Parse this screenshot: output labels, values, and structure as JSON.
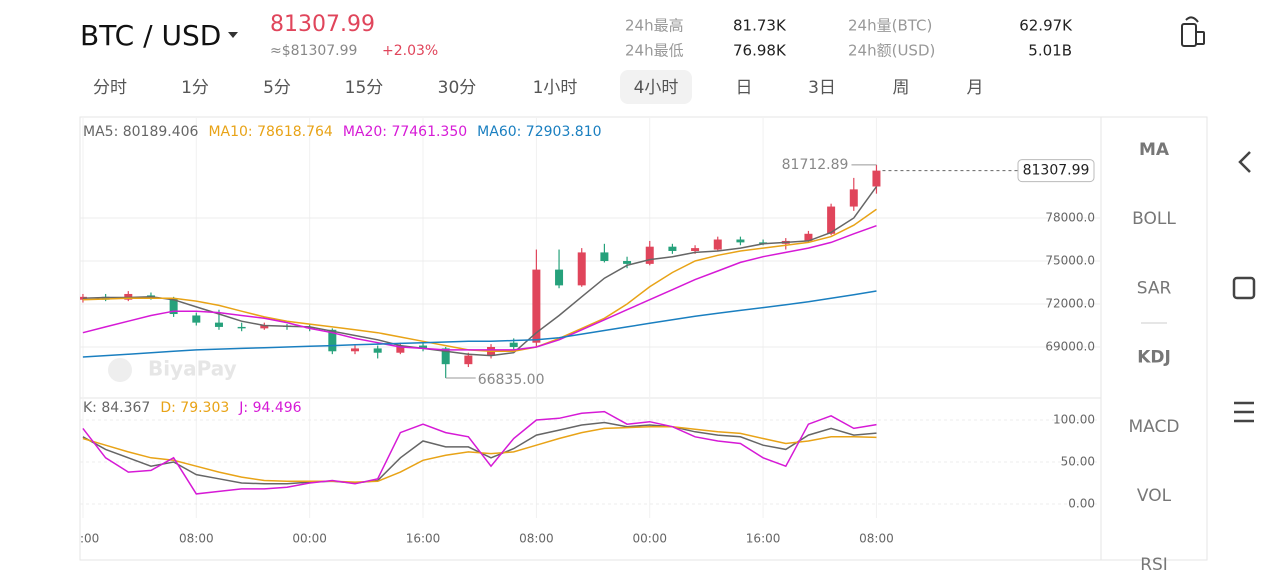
{
  "header": {
    "pair": "BTC / USD",
    "price": "81307.99",
    "approx": "≈$81307.99",
    "change": "+2.03%",
    "stats": [
      {
        "label": "24h最高",
        "value": "81.73K"
      },
      {
        "label": "24h最低",
        "value": "76.98K"
      },
      {
        "label": "24h量(BTC)",
        "value": "62.97K"
      },
      {
        "label": "24h额(USD)",
        "value": "5.01B"
      }
    ]
  },
  "tabs": [
    "分时",
    "1分",
    "5分",
    "15分",
    "30分",
    "1小时",
    "4小时",
    "日",
    "3日",
    "周",
    "月"
  ],
  "indicators": [
    "MA",
    "BOLL",
    "SAR",
    "KDJ",
    "MACD",
    "VOL",
    "RSI"
  ],
  "watermark": "BiyaPay",
  "chart_data": [
    {
      "type": "candlestick",
      "up_color": "#e0455b",
      "down_color": "#26a17b",
      "xlim": [
        -0.13,
        44.86
      ],
      "ylim": [
        65440,
        84980
      ],
      "yticks": [
        {
          "value": 69000,
          "label": "69000.0"
        },
        {
          "value": 72000,
          "label": "72000.0"
        },
        {
          "value": 75000,
          "label": "75000.0"
        },
        {
          "value": 78000,
          "label": "78000.0"
        }
      ],
      "candles": [
        {
          "open": 72300,
          "high": 72700,
          "low": 72100,
          "close": 72500
        },
        {
          "open": 72500,
          "high": 72700,
          "low": 72200,
          "close": 72300
        },
        {
          "open": 72300,
          "high": 72900,
          "low": 72200,
          "close": 72700
        },
        {
          "open": 72600,
          "high": 72800,
          "low": 72300,
          "close": 72400
        },
        {
          "open": 72400,
          "high": 72500,
          "low": 71100,
          "close": 71300
        },
        {
          "open": 71200,
          "high": 71400,
          "low": 70500,
          "close": 70700
        },
        {
          "open": 70700,
          "high": 71600,
          "low": 70200,
          "close": 70400
        },
        {
          "open": 70400,
          "high": 70700,
          "low": 70100,
          "close": 70300
        },
        {
          "open": 70300,
          "high": 70700,
          "low": 70200,
          "close": 70500
        },
        {
          "open": 70500,
          "high": 70600,
          "low": 70200,
          "close": 70400
        },
        {
          "open": 70400,
          "high": 70600,
          "low": 70100,
          "close": 70300
        },
        {
          "open": 70200,
          "high": 70300,
          "low": 68500,
          "close": 68700
        },
        {
          "open": 68700,
          "high": 69100,
          "low": 68500,
          "close": 68900
        },
        {
          "open": 68900,
          "high": 69100,
          "low": 68200,
          "close": 68600
        },
        {
          "open": 68600,
          "high": 69300,
          "low": 68500,
          "close": 69100
        },
        {
          "open": 69100,
          "high": 69300,
          "low": 68700,
          "close": 68900
        },
        {
          "open": 68900,
          "high": 69000,
          "low": 66835,
          "close": 67800
        },
        {
          "open": 67800,
          "high": 68600,
          "low": 67600,
          "close": 68400
        },
        {
          "open": 68400,
          "high": 69200,
          "low": 68200,
          "close": 69000
        },
        {
          "open": 69300,
          "high": 69600,
          "low": 68800,
          "close": 69000
        },
        {
          "open": 69300,
          "high": 75800,
          "low": 69000,
          "close": 74400
        },
        {
          "open": 74400,
          "high": 75800,
          "low": 73100,
          "close": 73300
        },
        {
          "open": 73300,
          "high": 75900,
          "low": 73200,
          "close": 75600
        },
        {
          "open": 75600,
          "high": 76200,
          "low": 74900,
          "close": 75000
        },
        {
          "open": 75000,
          "high": 75300,
          "low": 74500,
          "close": 74800
        },
        {
          "open": 74800,
          "high": 76400,
          "low": 74700,
          "close": 76000
        },
        {
          "open": 76000,
          "high": 76200,
          "low": 75500,
          "close": 75700
        },
        {
          "open": 75700,
          "high": 76100,
          "low": 75500,
          "close": 75900
        },
        {
          "open": 75800,
          "high": 76700,
          "low": 75700,
          "close": 76500
        },
        {
          "open": 76500,
          "high": 76700,
          "low": 76100,
          "close": 76300
        },
        {
          "open": 76300,
          "high": 76500,
          "low": 76100,
          "close": 76200
        },
        {
          "open": 76200,
          "high": 76600,
          "low": 75800,
          "close": 76400
        },
        {
          "open": 76400,
          "high": 77100,
          "low": 76300,
          "close": 76900
        },
        {
          "open": 76900,
          "high": 79000,
          "low": 76800,
          "close": 78800
        },
        {
          "open": 78800,
          "high": 80800,
          "low": 78500,
          "close": 80000
        },
        {
          "open": 80200,
          "high": 81712.89,
          "low": 79700,
          "close": 81307.99
        }
      ],
      "series": [
        {
          "name": "MA5: 80189.406",
          "color": "#666666",
          "values": [
            72400,
            72450,
            72450,
            72500,
            72300,
            71800,
            71300,
            70800,
            70500,
            70450,
            70400,
            70100,
            69800,
            69500,
            69100,
            68900,
            68700,
            68500,
            68400,
            68600,
            70000,
            71200,
            72500,
            73800,
            74700,
            75100,
            75300,
            75600,
            75700,
            75900,
            76200,
            76300,
            76400,
            77000,
            78000,
            80189.406
          ]
        },
        {
          "name": "MA10: 78618.764",
          "color": "#e8a317",
          "values": [
            72300,
            72350,
            72400,
            72400,
            72400,
            72200,
            71900,
            71500,
            71100,
            70800,
            70600,
            70400,
            70200,
            70000,
            69700,
            69400,
            69100,
            68800,
            68700,
            68700,
            69000,
            69600,
            70300,
            71000,
            72000,
            73200,
            74200,
            75000,
            75400,
            75700,
            75900,
            76100,
            76300,
            76700,
            77500,
            78618.764
          ]
        },
        {
          "name": "MA20: 77461.350",
          "color": "#d61ad6",
          "values": [
            70000,
            70400,
            70800,
            71200,
            71500,
            71500,
            71400,
            71200,
            71000,
            70700,
            70300,
            70000,
            69600,
            69300,
            69000,
            68900,
            68800,
            68800,
            68800,
            68800,
            69000,
            69500,
            70200,
            70900,
            71600,
            72300,
            73000,
            73700,
            74300,
            74900,
            75300,
            75600,
            75900,
            76300,
            76900,
            77461.35
          ]
        },
        {
          "name": "MA60: 72903.810",
          "color": "#1a7fc0",
          "values": [
            68300,
            68400,
            68500,
            68600,
            68700,
            68800,
            68850,
            68900,
            68950,
            69000,
            69050,
            69100,
            69150,
            69200,
            69250,
            69300,
            69350,
            69400,
            69400,
            69450,
            69500,
            69650,
            69900,
            70150,
            70400,
            70650,
            70900,
            71150,
            71350,
            71550,
            71750,
            71950,
            72150,
            72400,
            72650,
            72903.81
          ]
        }
      ],
      "high_mark": {
        "x": 35,
        "value": 81712.89,
        "label": "81712.89"
      },
      "low_mark": {
        "x": 16,
        "value": 66835,
        "label": "66835.00"
      },
      "last_price": {
        "value": 81307.99,
        "label": "81307.99"
      }
    },
    {
      "type": "line",
      "xlim": [
        -0.13,
        44.86
      ],
      "ylim": [
        -16.7,
        126.2
      ],
      "yticks": [
        {
          "value": 100,
          "label": "100.00"
        },
        {
          "value": 50,
          "label": "50.00"
        },
        {
          "value": 0,
          "label": "0.00"
        }
      ],
      "xticks": [
        {
          "value": 0,
          "label": ":00"
        },
        {
          "value": 5,
          "label": "08:00"
        },
        {
          "value": 10,
          "label": "00:00"
        },
        {
          "value": 15,
          "label": "16:00"
        },
        {
          "value": 20,
          "label": "08:00"
        },
        {
          "value": 25,
          "label": "00:00"
        },
        {
          "value": 30,
          "label": "16:00"
        },
        {
          "value": 35,
          "label": "08:00"
        }
      ],
      "series": [
        {
          "name": "K: 84.367",
          "color": "#666666",
          "values": [
            80,
            65,
            55,
            45,
            50,
            35,
            30,
            25,
            24,
            24,
            26,
            27,
            25,
            28,
            55,
            75,
            68,
            68,
            55,
            66,
            82,
            88,
            94,
            97,
            92,
            94,
            92,
            86,
            82,
            80,
            70,
            65,
            82,
            90,
            82,
            84.367
          ]
        },
        {
          "name": "D: 79.303",
          "color": "#e8a317",
          "values": [
            78,
            70,
            62,
            55,
            52,
            45,
            38,
            32,
            28,
            27,
            27,
            27,
            26,
            27,
            38,
            52,
            58,
            62,
            60,
            62,
            70,
            78,
            85,
            90,
            91,
            92,
            92,
            89,
            86,
            84,
            78,
            72,
            75,
            80,
            80,
            79.303
          ]
        },
        {
          "name": "J: 94.496",
          "color": "#d61ad6",
          "values": [
            90,
            55,
            38,
            40,
            55,
            12,
            15,
            18,
            18,
            20,
            25,
            28,
            24,
            30,
            85,
            95,
            85,
            80,
            45,
            78,
            100,
            102,
            108,
            110,
            95,
            98,
            92,
            80,
            75,
            72,
            55,
            45,
            95,
            105,
            90,
            94.496
          ]
        }
      ]
    }
  ]
}
